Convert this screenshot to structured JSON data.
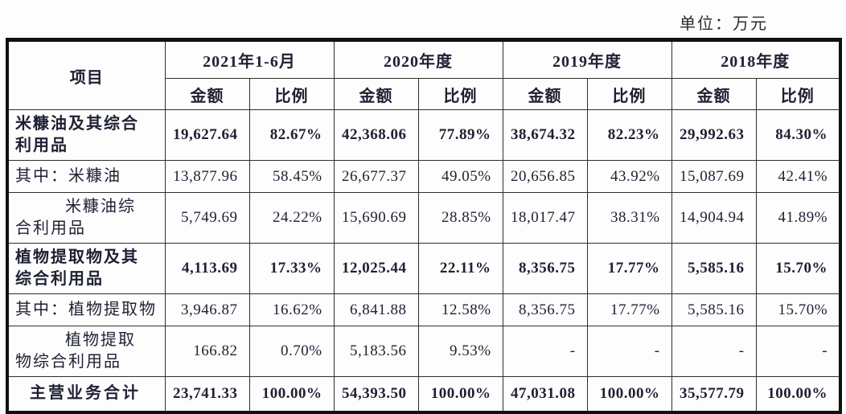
{
  "unit_label": "单位：万元",
  "table": {
    "item_header": "项目",
    "col_groups": [
      {
        "label": "2021年1-6月"
      },
      {
        "label": "2020年度"
      },
      {
        "label": "2019年度"
      },
      {
        "label": "2018年度"
      }
    ],
    "sub_headers": {
      "amount": "金额",
      "ratio": "比例"
    },
    "rows": [
      {
        "label": "米糠油及其综合\n利用品",
        "bold": true,
        "indent": false,
        "total": false,
        "values": [
          "19,627.64",
          "82.67%",
          "42,368.06",
          "77.89%",
          "38,674.32",
          "82.23%",
          "29,992.63",
          "84.30%"
        ]
      },
      {
        "label": "其中：米糠油",
        "bold": false,
        "indent": false,
        "total": false,
        "values": [
          "13,877.96",
          "58.45%",
          "26,677.37",
          "49.05%",
          "20,656.85",
          "43.92%",
          "15,087.69",
          "42.41%"
        ]
      },
      {
        "label": "米糠油综\n合利用品",
        "bold": false,
        "indent": true,
        "total": false,
        "values": [
          "5,749.69",
          "24.22%",
          "15,690.69",
          "28.85%",
          "18,017.47",
          "38.31%",
          "14,904.94",
          "41.89%"
        ]
      },
      {
        "label": "植物提取物及其\n综合利用品",
        "bold": true,
        "indent": false,
        "total": false,
        "values": [
          "4,113.69",
          "17.33%",
          "12,025.44",
          "22.11%",
          "8,356.75",
          "17.77%",
          "5,585.16",
          "15.70%"
        ]
      },
      {
        "label": "其中：植物提取物",
        "bold": false,
        "indent": false,
        "total": false,
        "values": [
          "3,946.87",
          "16.62%",
          "6,841.88",
          "12.58%",
          "8,356.75",
          "17.77%",
          "5,585.16",
          "15.70%"
        ]
      },
      {
        "label": "植物提取\n物综合利用品",
        "bold": false,
        "indent": true,
        "total": false,
        "values": [
          "166.82",
          "0.70%",
          "5,183.56",
          "9.53%",
          "-",
          "-",
          "-",
          "-"
        ]
      },
      {
        "label": "主营业务合计",
        "bold": true,
        "indent": false,
        "total": true,
        "values": [
          "23,741.33",
          "100.00%",
          "54,393.50",
          "100.00%",
          "47,031.08",
          "100.00%",
          "35,577.79",
          "100.00%"
        ]
      }
    ]
  },
  "colors": {
    "text": "#1e2133",
    "border": "#101010",
    "background": "#fdfdfd"
  }
}
